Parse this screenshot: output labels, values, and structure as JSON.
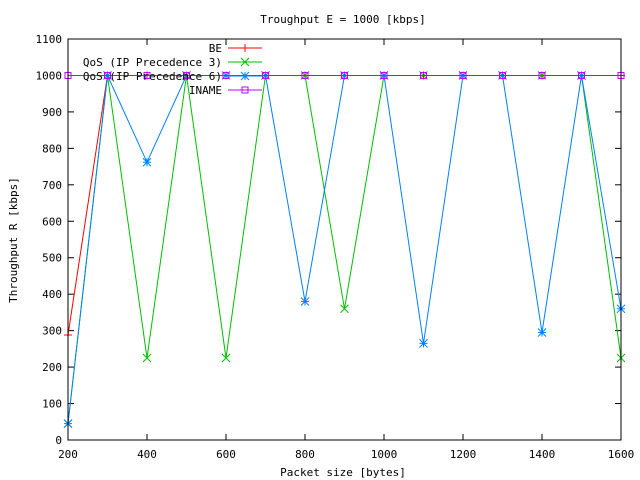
{
  "chart_data": {
    "type": "line",
    "title": "Troughput E = 1000 [kbps]",
    "xlabel": "Packet size [bytes]",
    "ylabel": "Throughput R [kbps]",
    "xlim": [
      200,
      1600
    ],
    "ylim": [
      0,
      1100
    ],
    "xticks": [
      200,
      400,
      600,
      800,
      1000,
      1200,
      1400,
      1600
    ],
    "yticks": [
      0,
      100,
      200,
      300,
      400,
      500,
      600,
      700,
      800,
      900,
      1000,
      1100
    ],
    "x": [
      200,
      300,
      400,
      500,
      600,
      700,
      800,
      900,
      1000,
      1100,
      1200,
      1300,
      1400,
      1500,
      1600
    ],
    "grid": false,
    "legend": "top-left",
    "series": [
      {
        "name": "BE",
        "color": "#ff0000",
        "marker": "plus",
        "values": [
          288,
          1000,
          1000,
          1000,
          1000,
          1000,
          1000,
          1000,
          1000,
          1000,
          1000,
          1000,
          1000,
          1000,
          1000
        ]
      },
      {
        "name": "QoS (IP Precedence 3)",
        "color": "#00c000",
        "marker": "cross",
        "values": [
          45,
          1000,
          225,
          1000,
          225,
          1000,
          1000,
          360,
          1000,
          1000,
          1000,
          1000,
          1000,
          1000,
          225
        ]
      },
      {
        "name": "QoS (IP Precedence 6)",
        "color": "#0080ff",
        "marker": "star",
        "values": [
          45,
          1000,
          762,
          1000,
          1000,
          1000,
          380,
          1000,
          1000,
          265,
          1000,
          1000,
          295,
          1000,
          360
        ]
      },
      {
        "name": "INAME",
        "color": "#c000ff",
        "marker": "square",
        "values": [
          1000,
          1000,
          1000,
          1000,
          1000,
          1000,
          1000,
          1000,
          1000,
          1000,
          1000,
          1000,
          1000,
          1000,
          1000
        ]
      }
    ]
  }
}
